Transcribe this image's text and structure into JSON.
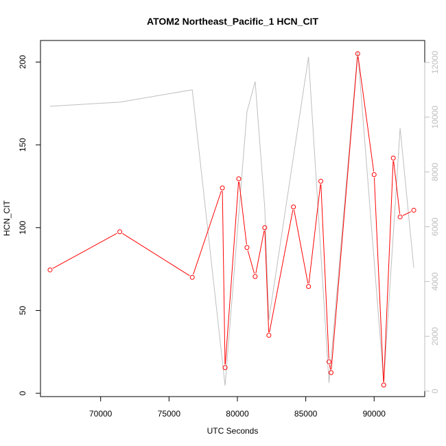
{
  "chart_data": {
    "type": "line",
    "title": "ATOM2 Northeast_Pacific_1 HCN_CIT",
    "xlabel": "UTC Seconds",
    "ylabel": "HCN_CIT",
    "ylabel_right": "",
    "xlim": [
      65600,
      93700
    ],
    "ylim": [
      -2,
      213
    ],
    "ylim_right": [
      -200,
      12800
    ],
    "x_ticks": [
      70000,
      75000,
      80000,
      85000,
      90000
    ],
    "y_ticks": [
      0,
      50,
      100,
      150,
      200
    ],
    "y_ticks_right": [
      0,
      2000,
      4000,
      6000,
      8000,
      10000,
      12000
    ],
    "grid": false,
    "series": [
      {
        "name": "",
        "axis": "left",
        "color": "#ff0000",
        "marker": "open-circle",
        "x": [
          66300,
          71400,
          76700,
          78900,
          79100,
          80100,
          80700,
          81300,
          82000,
          82300,
          84100,
          85200,
          86100,
          86700,
          86850,
          88800,
          90000,
          90700,
          91400,
          91900,
          92900
        ],
        "y": [
          74.5,
          97.5,
          70,
          124,
          15.5,
          129.5,
          88,
          70.5,
          100,
          35,
          112.5,
          64.5,
          128,
          19,
          12.5,
          205,
          132,
          5,
          142,
          106.5,
          110.5
        ]
      },
      {
        "name": "",
        "axis": "right",
        "color": "#bebebe",
        "marker": "none",
        "x": [
          66300,
          71400,
          76700,
          79100,
          80700,
          81300,
          82000,
          82300,
          85200,
          86700,
          88800,
          90700,
          91900,
          92900
        ],
        "y": [
          10400,
          10550,
          11000,
          200,
          10200,
          11300,
          6700,
          2600,
          12200,
          300,
          12400,
          300,
          9600,
          4500
        ]
      }
    ]
  }
}
